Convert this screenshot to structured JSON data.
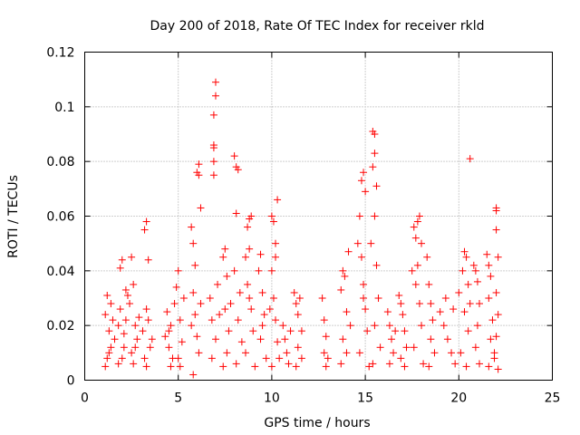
{
  "chart_data": {
    "type": "scatter",
    "title": "Day 200 of 2018, Rate Of TEC Index for receiver rkld",
    "xlabel": "GPS time / hours",
    "ylabel": "ROTI / TECUs",
    "xlim": [
      0,
      25
    ],
    "ylim": [
      0,
      0.12
    ],
    "xticks": [
      "0",
      "5",
      "10",
      "15",
      "20",
      "25"
    ],
    "yticks": [
      "0",
      "0.02",
      "0.04",
      "0.06",
      "0.08",
      "0.1",
      "0.12"
    ],
    "grid": true,
    "marker": "+",
    "color": "#ff0000",
    "series": [
      {
        "points": [
          [
            1.1,
            0.024
          ],
          [
            1.2,
            0.031
          ],
          [
            1.3,
            0.018
          ],
          [
            1.4,
            0.012
          ],
          [
            1.2,
            0.008
          ],
          [
            1.5,
            0.022
          ],
          [
            1.1,
            0.005
          ],
          [
            1.4,
            0.028
          ],
          [
            1.3,
            0.01
          ],
          [
            1.6,
            0.015
          ],
          [
            1.9,
            0.041
          ],
          [
            2.0,
            0.044
          ],
          [
            1.8,
            0.02
          ],
          [
            2.1,
            0.012
          ],
          [
            2.0,
            0.008
          ],
          [
            1.9,
            0.026
          ],
          [
            2.2,
            0.033
          ],
          [
            2.1,
            0.017
          ],
          [
            1.8,
            0.006
          ],
          [
            2.2,
            0.022
          ],
          [
            2.5,
            0.045
          ],
          [
            2.6,
            0.035
          ],
          [
            2.4,
            0.028
          ],
          [
            2.7,
            0.02
          ],
          [
            2.5,
            0.01
          ],
          [
            2.8,
            0.015
          ],
          [
            2.6,
            0.006
          ],
          [
            2.3,
            0.031
          ],
          [
            2.9,
            0.023
          ],
          [
            2.7,
            0.012
          ],
          [
            3.3,
            0.058
          ],
          [
            3.2,
            0.055
          ],
          [
            3.4,
            0.044
          ],
          [
            3.3,
            0.026
          ],
          [
            3.1,
            0.018
          ],
          [
            3.5,
            0.012
          ],
          [
            3.2,
            0.008
          ],
          [
            3.4,
            0.022
          ],
          [
            3.6,
            0.015
          ],
          [
            3.3,
            0.005
          ],
          [
            4.4,
            0.025
          ],
          [
            4.6,
            0.02
          ],
          [
            4.5,
            0.012
          ],
          [
            4.7,
            0.008
          ],
          [
            4.3,
            0.016
          ],
          [
            4.8,
            0.028
          ],
          [
            4.6,
            0.005
          ],
          [
            4.9,
            0.034
          ],
          [
            4.5,
            0.018
          ],
          [
            5.0,
            0.04
          ],
          [
            5.1,
            0.022
          ],
          [
            5.2,
            0.014
          ],
          [
            5.0,
            0.008
          ],
          [
            5.3,
            0.03
          ],
          [
            5.1,
            0.005
          ],
          [
            5.7,
            0.056
          ],
          [
            5.8,
            0.05
          ],
          [
            5.9,
            0.042
          ],
          [
            6.0,
            0.076
          ],
          [
            6.1,
            0.075
          ],
          [
            6.1,
            0.079
          ],
          [
            6.2,
            0.063
          ],
          [
            5.8,
            0.032
          ],
          [
            5.9,
            0.024
          ],
          [
            6.0,
            0.016
          ],
          [
            5.8,
            0.002
          ],
          [
            6.1,
            0.01
          ],
          [
            6.2,
            0.028
          ],
          [
            5.7,
            0.02
          ],
          [
            6.7,
            0.03
          ],
          [
            6.8,
            0.022
          ],
          [
            6.9,
            0.086
          ],
          [
            6.9,
            0.085
          ],
          [
            6.9,
            0.08
          ],
          [
            7.0,
            0.104
          ],
          [
            7.0,
            0.109
          ],
          [
            6.9,
            0.097
          ],
          [
            6.9,
            0.075
          ],
          [
            7.1,
            0.035
          ],
          [
            7.0,
            0.015
          ],
          [
            6.8,
            0.008
          ],
          [
            7.2,
            0.024
          ],
          [
            7.4,
            0.045
          ],
          [
            7.5,
            0.048
          ],
          [
            7.6,
            0.038
          ],
          [
            7.5,
            0.026
          ],
          [
            7.7,
            0.018
          ],
          [
            7.6,
            0.01
          ],
          [
            7.8,
            0.028
          ],
          [
            7.4,
            0.005
          ],
          [
            8.0,
            0.082
          ],
          [
            8.1,
            0.078
          ],
          [
            8.2,
            0.077
          ],
          [
            8.1,
            0.061
          ],
          [
            8.0,
            0.04
          ],
          [
            8.3,
            0.032
          ],
          [
            8.2,
            0.022
          ],
          [
            8.4,
            0.014
          ],
          [
            8.1,
            0.006
          ],
          [
            8.6,
            0.045
          ],
          [
            8.7,
            0.056
          ],
          [
            8.8,
            0.059
          ],
          [
            8.9,
            0.06
          ],
          [
            8.8,
            0.048
          ],
          [
            8.7,
            0.035
          ],
          [
            8.9,
            0.026
          ],
          [
            9.0,
            0.018
          ],
          [
            8.6,
            0.01
          ],
          [
            9.1,
            0.005
          ],
          [
            8.8,
            0.03
          ],
          [
            9.3,
            0.04
          ],
          [
            9.4,
            0.046
          ],
          [
            9.5,
            0.032
          ],
          [
            9.6,
            0.024
          ],
          [
            9.4,
            0.015
          ],
          [
            9.7,
            0.008
          ],
          [
            9.5,
            0.02
          ],
          [
            10.0,
            0.06
          ],
          [
            10.1,
            0.058
          ],
          [
            10.2,
            0.05
          ],
          [
            10.3,
            0.066
          ],
          [
            10.0,
            0.04
          ],
          [
            10.1,
            0.03
          ],
          [
            10.2,
            0.022
          ],
          [
            10.3,
            0.014
          ],
          [
            10.4,
            0.008
          ],
          [
            10.0,
            0.005
          ],
          [
            9.9,
            0.026
          ],
          [
            10.2,
            0.045
          ],
          [
            10.6,
            0.02
          ],
          [
            10.7,
            0.015
          ],
          [
            10.8,
            0.01
          ],
          [
            10.9,
            0.006
          ],
          [
            11.0,
            0.018
          ],
          [
            11.2,
            0.032
          ],
          [
            11.3,
            0.028
          ],
          [
            11.4,
            0.024
          ],
          [
            11.5,
            0.03
          ],
          [
            11.6,
            0.018
          ],
          [
            11.4,
            0.012
          ],
          [
            11.6,
            0.008
          ],
          [
            11.3,
            0.005
          ],
          [
            12.7,
            0.03
          ],
          [
            12.8,
            0.022
          ],
          [
            12.9,
            0.016
          ],
          [
            12.8,
            0.01
          ],
          [
            13.0,
            0.008
          ],
          [
            12.9,
            0.005
          ],
          [
            13.7,
            0.033
          ],
          [
            13.8,
            0.04
          ],
          [
            13.9,
            0.038
          ],
          [
            14.0,
            0.025
          ],
          [
            14.1,
            0.047
          ],
          [
            13.8,
            0.015
          ],
          [
            14.0,
            0.01
          ],
          [
            13.7,
            0.006
          ],
          [
            14.2,
            0.02
          ],
          [
            14.6,
            0.05
          ],
          [
            14.7,
            0.06
          ],
          [
            14.8,
            0.073
          ],
          [
            14.9,
            0.076
          ],
          [
            15.0,
            0.069
          ],
          [
            14.8,
            0.045
          ],
          [
            14.9,
            0.035
          ],
          [
            15.0,
            0.026
          ],
          [
            15.1,
            0.018
          ],
          [
            14.7,
            0.01
          ],
          [
            15.2,
            0.005
          ],
          [
            14.9,
            0.03
          ],
          [
            15.3,
            0.05
          ],
          [
            15.4,
            0.091
          ],
          [
            15.5,
            0.09
          ],
          [
            15.5,
            0.083
          ],
          [
            15.4,
            0.078
          ],
          [
            15.6,
            0.071
          ],
          [
            15.5,
            0.06
          ],
          [
            15.6,
            0.042
          ],
          [
            15.7,
            0.03
          ],
          [
            15.5,
            0.02
          ],
          [
            15.8,
            0.012
          ],
          [
            15.4,
            0.006
          ],
          [
            16.2,
            0.025
          ],
          [
            16.3,
            0.02
          ],
          [
            16.4,
            0.015
          ],
          [
            16.5,
            0.01
          ],
          [
            16.3,
            0.006
          ],
          [
            16.6,
            0.018
          ],
          [
            16.8,
            0.031
          ],
          [
            16.9,
            0.028
          ],
          [
            17.0,
            0.024
          ],
          [
            17.1,
            0.018
          ],
          [
            17.2,
            0.012
          ],
          [
            16.9,
            0.008
          ],
          [
            17.1,
            0.005
          ],
          [
            17.5,
            0.04
          ],
          [
            17.6,
            0.056
          ],
          [
            17.7,
            0.052
          ],
          [
            17.8,
            0.058
          ],
          [
            17.9,
            0.06
          ],
          [
            18.0,
            0.05
          ],
          [
            17.8,
            0.042
          ],
          [
            17.7,
            0.035
          ],
          [
            17.9,
            0.028
          ],
          [
            18.0,
            0.02
          ],
          [
            17.6,
            0.012
          ],
          [
            18.1,
            0.006
          ],
          [
            18.3,
            0.045
          ],
          [
            18.4,
            0.035
          ],
          [
            18.5,
            0.028
          ],
          [
            18.6,
            0.022
          ],
          [
            18.5,
            0.015
          ],
          [
            18.7,
            0.01
          ],
          [
            18.4,
            0.005
          ],
          [
            19.0,
            0.025
          ],
          [
            19.2,
            0.02
          ],
          [
            19.4,
            0.015
          ],
          [
            19.6,
            0.01
          ],
          [
            19.8,
            0.006
          ],
          [
            19.3,
            0.03
          ],
          [
            19.7,
            0.026
          ],
          [
            20.0,
            0.032
          ],
          [
            20.2,
            0.04
          ],
          [
            20.3,
            0.047
          ],
          [
            20.4,
            0.045
          ],
          [
            20.5,
            0.035
          ],
          [
            20.6,
            0.081
          ],
          [
            20.3,
            0.025
          ],
          [
            20.5,
            0.018
          ],
          [
            20.1,
            0.01
          ],
          [
            20.4,
            0.005
          ],
          [
            20.6,
            0.028
          ],
          [
            20.8,
            0.042
          ],
          [
            20.9,
            0.04
          ],
          [
            21.0,
            0.036
          ],
          [
            21.1,
            0.028
          ],
          [
            21.0,
            0.02
          ],
          [
            20.9,
            0.012
          ],
          [
            21.1,
            0.006
          ],
          [
            21.5,
            0.046
          ],
          [
            21.6,
            0.042
          ],
          [
            21.7,
            0.038
          ],
          [
            21.6,
            0.03
          ],
          [
            21.8,
            0.022
          ],
          [
            21.7,
            0.015
          ],
          [
            21.9,
            0.01
          ],
          [
            21.6,
            0.005
          ],
          [
            22.0,
            0.063
          ],
          [
            22.0,
            0.062
          ],
          [
            22.0,
            0.055
          ],
          [
            22.1,
            0.045
          ],
          [
            22.0,
            0.032
          ],
          [
            22.1,
            0.024
          ],
          [
            22.0,
            0.016
          ],
          [
            21.9,
            0.008
          ],
          [
            22.1,
            0.004
          ]
        ]
      }
    ]
  }
}
